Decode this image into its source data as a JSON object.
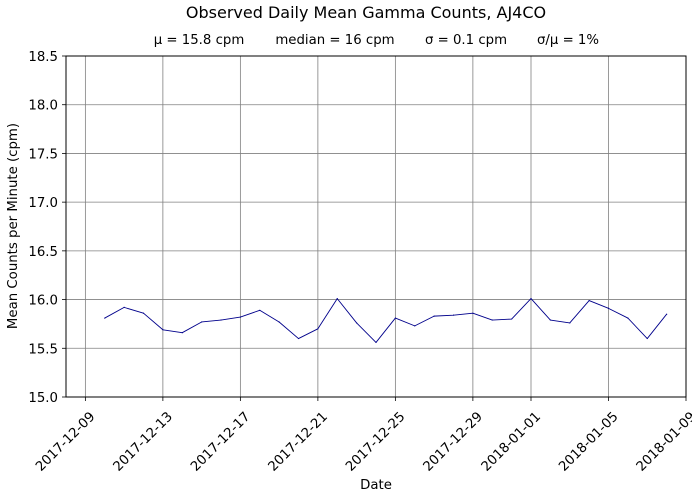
{
  "chart_data": {
    "type": "line",
    "title": "Observed Daily Mean Gamma Counts, AJ4CO",
    "subtitle": {
      "mean": "μ = 15.8 cpm",
      "median": "median = 16 cpm",
      "sigma": "σ = 0.1 cpm",
      "cv": "σ/μ = 1%"
    },
    "xlabel": "Date",
    "ylabel": "Mean Counts per Minute (cpm)",
    "xlim": [
      "2017-12-08",
      "2018-01-09"
    ],
    "ylim": [
      15.0,
      18.5
    ],
    "x_ticks": [
      "2017-12-09",
      "2017-12-13",
      "2017-12-17",
      "2017-12-21",
      "2017-12-25",
      "2017-12-29",
      "2018-01-01",
      "2018-01-05",
      "2018-01-09"
    ],
    "y_ticks": [
      "15.0",
      "15.5",
      "16.0",
      "16.5",
      "17.0",
      "17.5",
      "18.0",
      "18.5"
    ],
    "grid": true,
    "colors": {
      "line": "#00008b",
      "grid": "#808080"
    },
    "series": [
      {
        "x": [
          "2017-12-10",
          "2017-12-11",
          "2017-12-12",
          "2017-12-13",
          "2017-12-14",
          "2017-12-15",
          "2017-12-16",
          "2017-12-17",
          "2017-12-18",
          "2017-12-19",
          "2017-12-20",
          "2017-12-21",
          "2017-12-22",
          "2017-12-23",
          "2017-12-24",
          "2017-12-25",
          "2017-12-26",
          "2017-12-27",
          "2017-12-28",
          "2017-12-29",
          "2017-12-30",
          "2017-12-31",
          "2018-01-01",
          "2018-01-02",
          "2018-01-03",
          "2018-01-04",
          "2018-01-05",
          "2018-01-06",
          "2018-01-07",
          "2018-01-08"
        ],
        "values": [
          15.81,
          15.92,
          15.86,
          15.69,
          15.66,
          15.77,
          15.79,
          15.82,
          15.89,
          15.77,
          15.6,
          15.7,
          16.01,
          15.76,
          15.56,
          15.81,
          15.73,
          15.83,
          15.84,
          15.86,
          15.79,
          15.8,
          16.01,
          15.79,
          15.76,
          15.99,
          15.91,
          15.81,
          15.6,
          15.85
        ]
      }
    ]
  }
}
